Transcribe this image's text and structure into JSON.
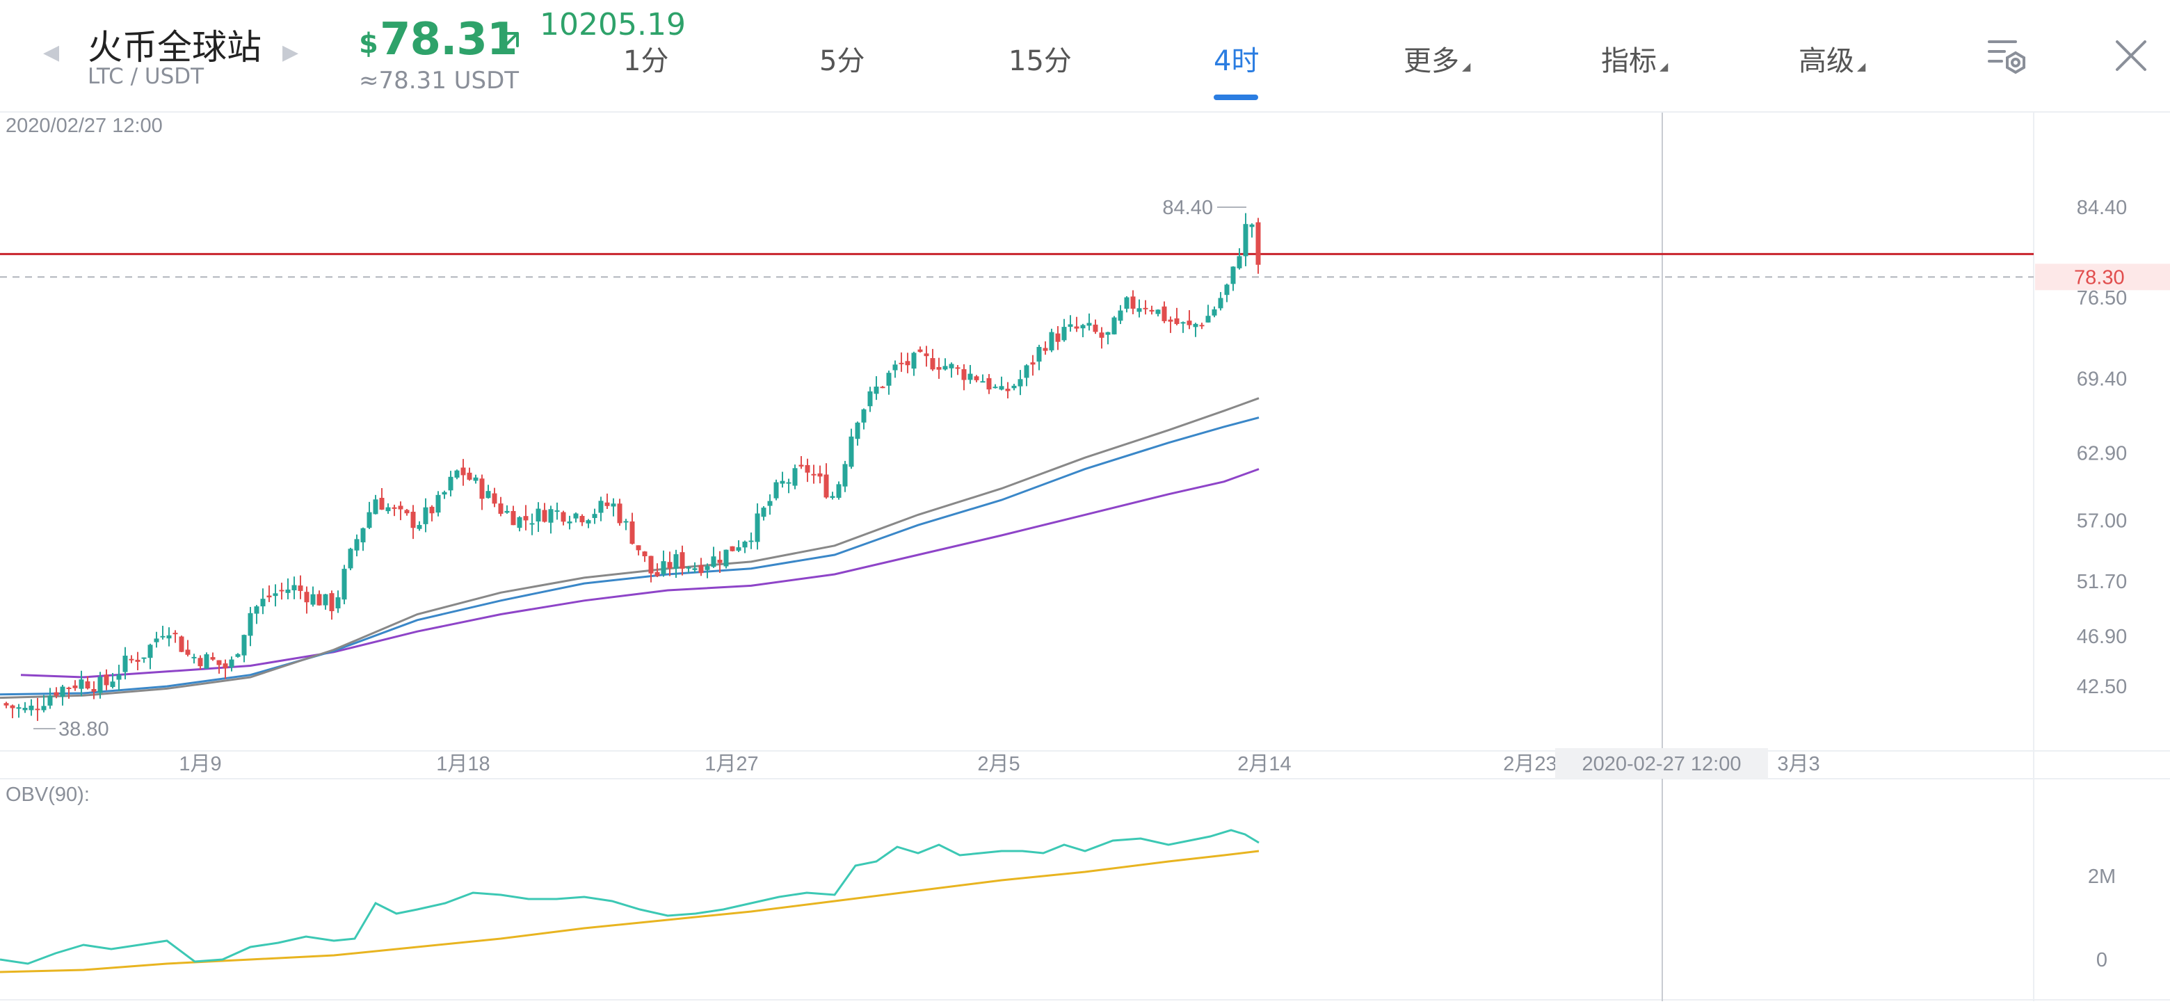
{
  "header": {
    "exchange": "火币全球站",
    "pair": "LTC / USDT",
    "currency_symbol": "$",
    "price": "78.31",
    "index_value": "10205.19",
    "approx_price": "≈78.31 USDT",
    "price_color": "#2ea26a"
  },
  "tabs": [
    {
      "label": "1分",
      "active": false
    },
    {
      "label": "5分",
      "active": false
    },
    {
      "label": "15分",
      "active": false
    },
    {
      "label": "4时",
      "active": true
    },
    {
      "label": "更多",
      "active": false,
      "dropdown": true
    },
    {
      "label": "指标",
      "active": false,
      "dropdown": true
    },
    {
      "label": "高级",
      "active": false,
      "dropdown": true
    }
  ],
  "icons": {
    "prev": "chevron-left-icon",
    "next": "chevron-right-icon",
    "trend": "arrow-up-right-icon",
    "settings": "chart-settings-icon",
    "close": "close-icon"
  },
  "main_chart": {
    "crosshair_label": "2020/02/27 12:00",
    "crosshair_date_label": "2020-02-27 12:00",
    "max_label": "84.40",
    "min_label": "38.80",
    "current_price_label": "78.30",
    "alert_line_value": 80.3,
    "current_price_color": "#e14d4d",
    "alert_line_color": "#c8232c"
  },
  "obv_panel": {
    "label": "OBV(90):"
  },
  "chart_data": {
    "type": "candlestick",
    "price_ticks": [
      "84.40",
      "76.50",
      "69.40",
      "62.90",
      "57.00",
      "51.70",
      "46.90",
      "42.50"
    ],
    "date_ticks": [
      "1月9",
      "1月18",
      "1月27",
      "2月5",
      "2月14",
      "2月23",
      "3月3"
    ],
    "obv_ticks": [
      "2M",
      "0"
    ],
    "price_range": [
      38.8,
      84.4
    ],
    "series": [
      {
        "name": "price",
        "color_up": "#26a69a",
        "color_down": "#e14d4d"
      },
      {
        "name": "ma-long",
        "color": "#8e44c8"
      },
      {
        "name": "ma-mid",
        "color": "#3a87c8"
      },
      {
        "name": "ma-short",
        "color": "#888888"
      },
      {
        "name": "obv",
        "color": "#3cc8b4"
      },
      {
        "name": "obv-ma",
        "color": "#e8b420"
      }
    ],
    "close_path": [
      [
        0,
        41.0
      ],
      [
        20,
        40.3
      ],
      [
        40,
        42.2
      ],
      [
        60,
        43.0
      ],
      [
        75,
        42.5
      ],
      [
        90,
        44.5
      ],
      [
        105,
        45.5
      ],
      [
        120,
        48.0
      ],
      [
        135,
        45.2
      ],
      [
        150,
        44.8
      ],
      [
        165,
        44.0
      ],
      [
        180,
        49.0
      ],
      [
        195,
        50.5
      ],
      [
        210,
        51.2
      ],
      [
        225,
        50.3
      ],
      [
        240,
        49.5
      ],
      [
        255,
        55.0
      ],
      [
        270,
        59.0
      ],
      [
        285,
        57.5
      ],
      [
        300,
        56.8
      ],
      [
        315,
        58.5
      ],
      [
        330,
        61.5
      ],
      [
        345,
        59.8
      ],
      [
        360,
        58.0
      ],
      [
        375,
        57.0
      ],
      [
        395,
        57.8
      ],
      [
        420,
        57.5
      ],
      [
        440,
        58.5
      ],
      [
        455,
        55.5
      ],
      [
        470,
        52.0
      ],
      [
        485,
        53.5
      ],
      [
        500,
        53.0
      ],
      [
        520,
        54.0
      ],
      [
        540,
        56.0
      ],
      [
        560,
        60.0
      ],
      [
        580,
        61.5
      ],
      [
        600,
        59.0
      ],
      [
        615,
        66.0
      ],
      [
        630,
        68.5
      ],
      [
        645,
        70.5
      ],
      [
        660,
        71.0
      ],
      [
        675,
        70.8
      ],
      [
        690,
        70.0
      ],
      [
        705,
        69.5
      ],
      [
        720,
        68.0
      ],
      [
        735,
        69.5
      ],
      [
        750,
        72.5
      ],
      [
        765,
        73.5
      ],
      [
        780,
        73.8
      ],
      [
        795,
        72.8
      ],
      [
        810,
        75.8
      ],
      [
        825,
        76.0
      ],
      [
        840,
        74.5
      ],
      [
        855,
        73.8
      ],
      [
        870,
        75.0
      ],
      [
        885,
        78.0
      ],
      [
        895,
        82.5
      ],
      [
        900,
        83.0
      ],
      [
        905,
        78.3
      ]
    ],
    "ma_long_path": [
      [
        15,
        43.5
      ],
      [
        60,
        43.3
      ],
      [
        120,
        43.8
      ],
      [
        180,
        44.3
      ],
      [
        240,
        45.5
      ],
      [
        300,
        47.3
      ],
      [
        360,
        48.8
      ],
      [
        420,
        50.0
      ],
      [
        480,
        50.9
      ],
      [
        540,
        51.3
      ],
      [
        600,
        52.3
      ],
      [
        660,
        54.0
      ],
      [
        720,
        55.7
      ],
      [
        780,
        57.5
      ],
      [
        840,
        59.3
      ],
      [
        880,
        60.4
      ],
      [
        905,
        61.5
      ]
    ],
    "ma_mid_path": [
      [
        0,
        41.8
      ],
      [
        60,
        41.9
      ],
      [
        120,
        42.5
      ],
      [
        180,
        43.5
      ],
      [
        240,
        45.6
      ],
      [
        300,
        48.3
      ],
      [
        360,
        50.0
      ],
      [
        420,
        51.5
      ],
      [
        480,
        52.3
      ],
      [
        540,
        52.8
      ],
      [
        600,
        54.0
      ],
      [
        660,
        56.6
      ],
      [
        720,
        58.8
      ],
      [
        780,
        61.5
      ],
      [
        840,
        63.8
      ],
      [
        880,
        65.2
      ],
      [
        905,
        66.0
      ]
    ],
    "ma_short_path": [
      [
        0,
        41.5
      ],
      [
        60,
        41.7
      ],
      [
        120,
        42.3
      ],
      [
        180,
        43.3
      ],
      [
        240,
        45.7
      ],
      [
        300,
        48.8
      ],
      [
        360,
        50.7
      ],
      [
        420,
        52.0
      ],
      [
        480,
        52.8
      ],
      [
        540,
        53.4
      ],
      [
        600,
        54.8
      ],
      [
        660,
        57.5
      ],
      [
        720,
        59.8
      ],
      [
        780,
        62.5
      ],
      [
        840,
        64.9
      ],
      [
        880,
        66.6
      ],
      [
        905,
        67.7
      ]
    ],
    "obv_path": [
      [
        0,
        0.0
      ],
      [
        20,
        -0.1
      ],
      [
        40,
        0.15
      ],
      [
        60,
        0.35
      ],
      [
        80,
        0.25
      ],
      [
        100,
        0.35
      ],
      [
        120,
        0.45
      ],
      [
        140,
        -0.05
      ],
      [
        160,
        0.0
      ],
      [
        180,
        0.3
      ],
      [
        200,
        0.4
      ],
      [
        220,
        0.55
      ],
      [
        240,
        0.45
      ],
      [
        255,
        0.5
      ],
      [
        270,
        1.35
      ],
      [
        285,
        1.1
      ],
      [
        300,
        1.2
      ],
      [
        320,
        1.35
      ],
      [
        340,
        1.6
      ],
      [
        360,
        1.55
      ],
      [
        380,
        1.45
      ],
      [
        400,
        1.45
      ],
      [
        420,
        1.5
      ],
      [
        440,
        1.4
      ],
      [
        460,
        1.2
      ],
      [
        480,
        1.05
      ],
      [
        500,
        1.1
      ],
      [
        520,
        1.2
      ],
      [
        540,
        1.35
      ],
      [
        560,
        1.5
      ],
      [
        580,
        1.6
      ],
      [
        600,
        1.55
      ],
      [
        615,
        2.25
      ],
      [
        630,
        2.35
      ],
      [
        645,
        2.7
      ],
      [
        660,
        2.55
      ],
      [
        675,
        2.75
      ],
      [
        690,
        2.5
      ],
      [
        705,
        2.55
      ],
      [
        720,
        2.6
      ],
      [
        735,
        2.6
      ],
      [
        750,
        2.55
      ],
      [
        765,
        2.75
      ],
      [
        780,
        2.6
      ],
      [
        800,
        2.85
      ],
      [
        820,
        2.9
      ],
      [
        840,
        2.75
      ],
      [
        855,
        2.85
      ],
      [
        870,
        2.95
      ],
      [
        885,
        3.1
      ],
      [
        895,
        3.0
      ],
      [
        905,
        2.8
      ]
    ],
    "obv_ma_path": [
      [
        0,
        -0.3
      ],
      [
        60,
        -0.25
      ],
      [
        120,
        -0.1
      ],
      [
        180,
        0.0
      ],
      [
        240,
        0.1
      ],
      [
        300,
        0.3
      ],
      [
        360,
        0.5
      ],
      [
        420,
        0.75
      ],
      [
        480,
        0.95
      ],
      [
        540,
        1.15
      ],
      [
        600,
        1.4
      ],
      [
        660,
        1.65
      ],
      [
        720,
        1.9
      ],
      [
        780,
        2.1
      ],
      [
        840,
        2.35
      ],
      [
        880,
        2.5
      ],
      [
        905,
        2.6
      ]
    ]
  }
}
